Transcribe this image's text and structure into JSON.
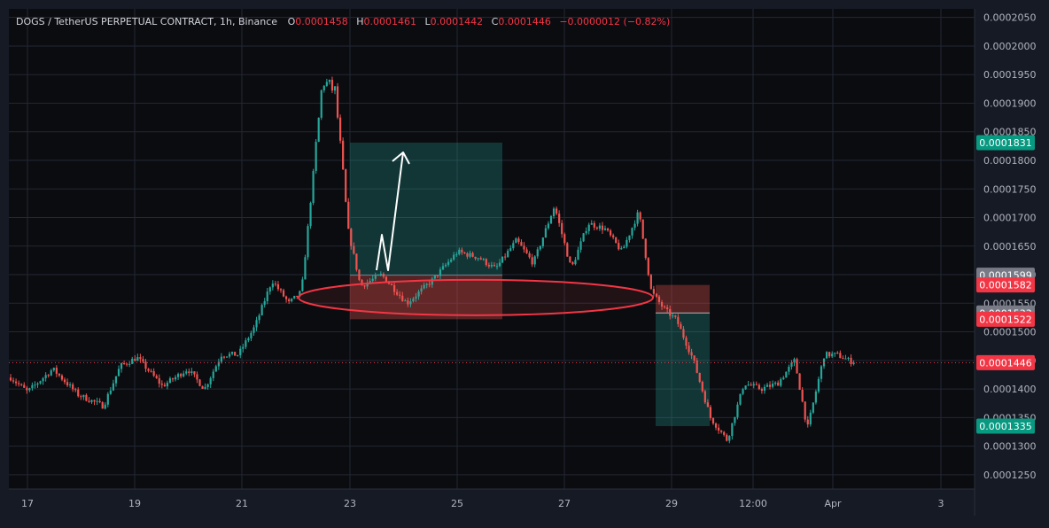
{
  "header": {
    "symbol": "DOGS / TetherUS PERPETUAL CONTRACT, 1h, Binance",
    "o_label": "O",
    "o_value": "0.0001458",
    "h_label": "H",
    "h_value": "0.0001461",
    "l_label": "L",
    "l_value": "0.0001442",
    "c_label": "C",
    "c_value": "0.0001446",
    "change": "−0.0000012 (−0.82%)"
  },
  "colors": {
    "background": "#161a25",
    "up": "#26a69a",
    "down": "#ef5350",
    "grid": "#232733",
    "text": "#d1d4dc",
    "axis_text": "#b2b5be",
    "tag_green": "#089981",
    "tag_red": "#f23645",
    "tag_gray": "#787b86"
  },
  "price_axis": {
    "ticks": [
      "0.0002050",
      "0.0002000",
      "0.0001950",
      "0.0001900",
      "0.0001850",
      "0.0001800",
      "0.0001750",
      "0.0001700",
      "0.0001650",
      "0.0001600",
      "0.0001550",
      "0.0001500",
      "0.0001450",
      "0.0001400",
      "0.0001350",
      "0.0001300",
      "0.0001250"
    ],
    "tags": [
      {
        "text": "0.0001831",
        "color": "#089981",
        "price": 0.0001831
      },
      {
        "text": "0.0001599",
        "color": "#787b86",
        "price": 0.0001599
      },
      {
        "text": "0.0001582",
        "color": "#f23645",
        "price": 0.0001582
      },
      {
        "text": "0.0001533",
        "color": "#787b86",
        "price": 0.0001533
      },
      {
        "text": "0.0001522",
        "color": "#f23645",
        "price": 0.0001522
      },
      {
        "text": "0.0001446",
        "color": "#f23645",
        "price": 0.0001446
      },
      {
        "text": "0.0001335",
        "color": "#089981",
        "price": 0.0001335
      }
    ]
  },
  "time_axis": {
    "labels": [
      "17",
      "19",
      "21",
      "23",
      "25",
      "27",
      "29",
      "12:00",
      "Apr",
      "3"
    ]
  },
  "chart_data": {
    "type": "candlestick",
    "interval": "1h",
    "current_price": 0.0001446,
    "ylim": [
      0.0001225,
      0.0002065
    ],
    "anchors": [
      {
        "t": 0,
        "p": 0.000142
      },
      {
        "t": 0.02,
        "p": 0.0001395
      },
      {
        "t": 0.05,
        "p": 0.0001435
      },
      {
        "t": 0.08,
        "p": 0.000139
      },
      {
        "t": 0.11,
        "p": 0.000137
      },
      {
        "t": 0.13,
        "p": 0.000144
      },
      {
        "t": 0.15,
        "p": 0.0001455
      },
      {
        "t": 0.18,
        "p": 0.0001405
      },
      {
        "t": 0.21,
        "p": 0.0001435
      },
      {
        "t": 0.23,
        "p": 0.00014
      },
      {
        "t": 0.25,
        "p": 0.000146
      },
      {
        "t": 0.27,
        "p": 0.000146
      },
      {
        "t": 0.29,
        "p": 0.000151
      },
      {
        "t": 0.31,
        "p": 0.000159
      },
      {
        "t": 0.33,
        "p": 0.000155
      },
      {
        "t": 0.345,
        "p": 0.000157
      },
      {
        "t": 0.37,
        "p": 0.000194
      },
      {
        "t": 0.385,
        "p": 0.000192
      },
      {
        "t": 0.4,
        "p": 0.000168
      },
      {
        "t": 0.415,
        "p": 0.000158
      },
      {
        "t": 0.44,
        "p": 0.00016
      },
      {
        "t": 0.47,
        "p": 0.000155
      },
      {
        "t": 0.5,
        "p": 0.000159
      },
      {
        "t": 0.53,
        "p": 0.000164
      },
      {
        "t": 0.555,
        "p": 0.000163
      },
      {
        "t": 0.575,
        "p": 0.000161
      },
      {
        "t": 0.6,
        "p": 0.000166
      },
      {
        "t": 0.62,
        "p": 0.000162
      },
      {
        "t": 0.645,
        "p": 0.000172
      },
      {
        "t": 0.665,
        "p": 0.000161
      },
      {
        "t": 0.685,
        "p": 0.000169
      },
      {
        "t": 0.705,
        "p": 0.000168
      },
      {
        "t": 0.725,
        "p": 0.000164
      },
      {
        "t": 0.745,
        "p": 0.000171
      },
      {
        "t": 0.76,
        "p": 0.000157
      },
      {
        "t": 0.775,
        "p": 0.000154
      },
      {
        "t": 0.79,
        "p": 0.000152
      },
      {
        "t": 0.81,
        "p": 0.000145
      },
      {
        "t": 0.83,
        "p": 0.000135
      },
      {
        "t": 0.85,
        "p": 0.000131
      },
      {
        "t": 0.87,
        "p": 0.000141
      },
      {
        "t": 0.89,
        "p": 0.00014
      },
      {
        "t": 0.91,
        "p": 0.000141
      },
      {
        "t": 0.93,
        "p": 0.000145
      },
      {
        "t": 0.945,
        "p": 0.000133
      },
      {
        "t": 0.965,
        "p": 0.000146
      },
      {
        "t": 0.98,
        "p": 0.000146
      },
      {
        "t": 1.0,
        "p": 0.0001446
      }
    ]
  },
  "drawings": {
    "long_position": {
      "entry": 0.0001599,
      "target": 0.0001831,
      "stop": 0.0001522
    },
    "short_position": {
      "entry": 0.0001533,
      "target": 0.0001335,
      "stop": 0.0001582
    },
    "support_zone": {
      "price": 0.000156
    },
    "arrow": "up"
  }
}
